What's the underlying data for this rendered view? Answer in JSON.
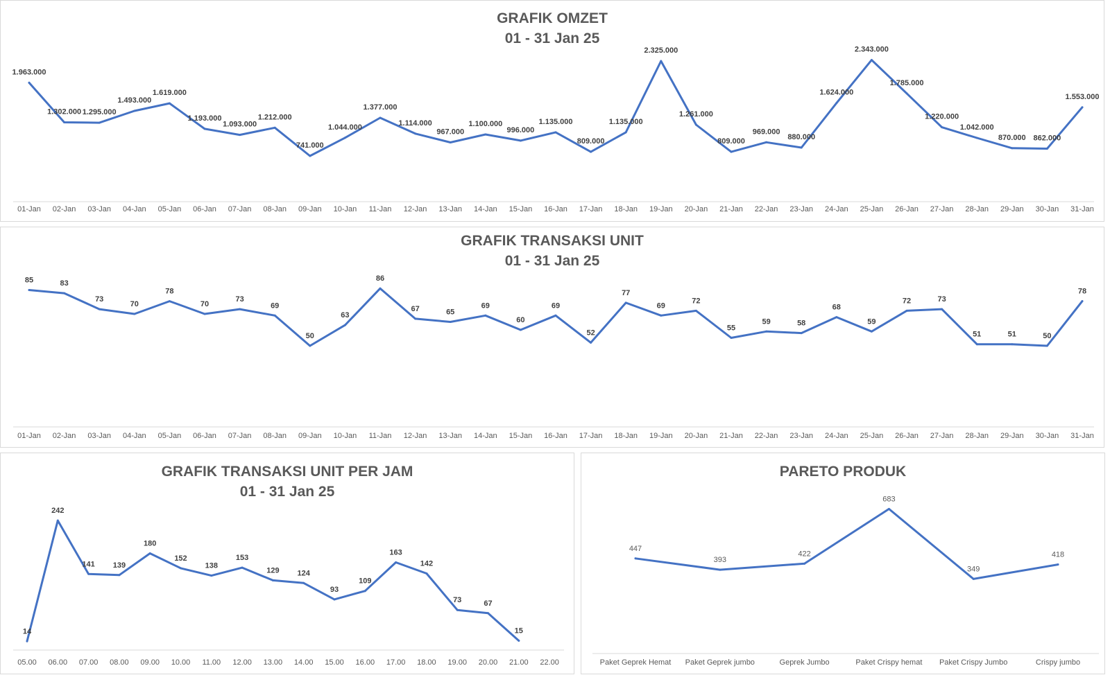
{
  "chart_data": [
    {
      "id": "omzet",
      "type": "line",
      "title": "GRAFIK OMZET",
      "subtitle": "01 - 31 Jan 25",
      "categories": [
        "01-Jan",
        "02-Jan",
        "03-Jan",
        "04-Jan",
        "05-Jan",
        "06-Jan",
        "07-Jan",
        "08-Jan",
        "09-Jan",
        "10-Jan",
        "11-Jan",
        "12-Jan",
        "13-Jan",
        "14-Jan",
        "15-Jan",
        "16-Jan",
        "17-Jan",
        "18-Jan",
        "19-Jan",
        "20-Jan",
        "21-Jan",
        "22-Jan",
        "23-Jan",
        "24-Jan",
        "25-Jan",
        "26-Jan",
        "27-Jan",
        "28-Jan",
        "29-Jan",
        "30-Jan",
        "31-Jan"
      ],
      "values": [
        1963000,
        1302000,
        1295000,
        1493000,
        1619000,
        1193000,
        1093000,
        1212000,
        741000,
        1044000,
        1377000,
        1114000,
        967000,
        1100000,
        996000,
        1135000,
        809000,
        1135000,
        2325000,
        1261000,
        809000,
        969000,
        880000,
        1624000,
        2343000,
        1785000,
        1220000,
        1042000,
        870000,
        862000,
        1553000
      ],
      "data_labels": [
        "1.963.000",
        "1.302.000",
        "1.295.000",
        "1.493.000",
        "1.619.000",
        "1.193.000",
        "1.093.000",
        "1.212.000",
        "741.000",
        "1.044.000",
        "1.377.000",
        "1.114.000",
        "967.000",
        "1.100.000",
        "996.000",
        "1.135.000",
        "809.000",
        "1.135.000",
        "2.325.000",
        "1.261.000",
        "809.000",
        "969.000",
        "880.000",
        "1.624.000",
        "2.343.000",
        "1.785.000",
        "1.220.000",
        "1.042.000",
        "870.000",
        "862.000",
        "1.553.000"
      ],
      "ylim": [
        0,
        2500000
      ],
      "grid": false,
      "line_color": "#4472c4"
    },
    {
      "id": "unit",
      "type": "line",
      "title": "GRAFIK TRANSAKSI UNIT",
      "subtitle": "01 - 31 Jan 25",
      "categories": [
        "01-Jan",
        "02-Jan",
        "03-Jan",
        "04-Jan",
        "05-Jan",
        "06-Jan",
        "07-Jan",
        "08-Jan",
        "09-Jan",
        "10-Jan",
        "11-Jan",
        "12-Jan",
        "13-Jan",
        "14-Jan",
        "15-Jan",
        "16-Jan",
        "17-Jan",
        "18-Jan",
        "19-Jan",
        "20-Jan",
        "21-Jan",
        "22-Jan",
        "23-Jan",
        "24-Jan",
        "25-Jan",
        "26-Jan",
        "27-Jan",
        "28-Jan",
        "29-Jan",
        "30-Jan",
        "31-Jan"
      ],
      "values": [
        85,
        83,
        73,
        70,
        78,
        70,
        73,
        69,
        50,
        63,
        86,
        67,
        65,
        69,
        60,
        69,
        52,
        77,
        69,
        72,
        55,
        59,
        58,
        68,
        59,
        72,
        73,
        51,
        51,
        50,
        78
      ],
      "data_labels": [
        "85",
        "83",
        "73",
        "70",
        "78",
        "70",
        "73",
        "69",
        "50",
        "63",
        "86",
        "67",
        "65",
        "69",
        "60",
        "69",
        "52",
        "77",
        "69",
        "72",
        "55",
        "59",
        "58",
        "68",
        "59",
        "72",
        "73",
        "51",
        "51",
        "50",
        "78"
      ],
      "ylim": [
        0,
        100
      ],
      "grid": false,
      "line_color": "#4472c4"
    },
    {
      "id": "perjam",
      "type": "line",
      "title": "GRAFIK TRANSAKSI UNIT PER JAM",
      "subtitle": "01 - 31 Jan 25",
      "categories": [
        "05.00",
        "06.00",
        "07.00",
        "08.00",
        "09.00",
        "10.00",
        "11.00",
        "12.00",
        "13.00",
        "14.00",
        "15.00",
        "16.00",
        "17.00",
        "18.00",
        "19.00",
        "20.00",
        "21.00",
        "22.00"
      ],
      "values": [
        14,
        242,
        141,
        139,
        180,
        152,
        138,
        153,
        129,
        124,
        93,
        109,
        163,
        142,
        73,
        67,
        15,
        null
      ],
      "data_labels": [
        "14",
        "242",
        "141",
        "139",
        "180",
        "152",
        "138",
        "153",
        "129",
        "124",
        "93",
        "109",
        "163",
        "142",
        "73",
        "67",
        "15",
        ""
      ],
      "ylim": [
        0,
        250
      ],
      "grid": false,
      "line_color": "#4472c4"
    },
    {
      "id": "pareto",
      "type": "line",
      "title": "PARETO PRODUK",
      "subtitle": "",
      "categories": [
        "Paket Geprek Hemat",
        "Paket Geprek jumbo",
        "Geprek Jumbo",
        "Paket Crispy hemat",
        "Paket Crispy Jumbo",
        "Crispy jumbo"
      ],
      "values": [
        447,
        393,
        422,
        683,
        349,
        418
      ],
      "data_labels": [
        "447",
        "393",
        "422",
        "683",
        "349",
        "418"
      ],
      "ylim": [
        0,
        800
      ],
      "grid": false,
      "line_color": "#4472c4"
    }
  ]
}
